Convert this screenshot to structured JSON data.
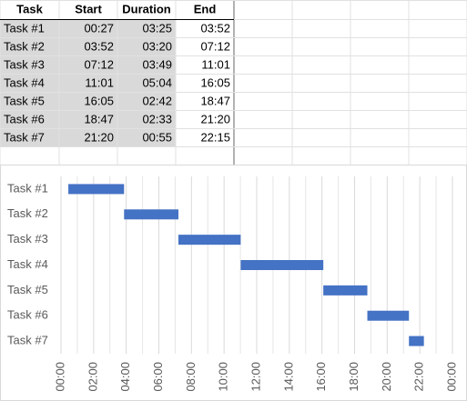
{
  "table": {
    "header": [
      "Task",
      "Start",
      "Duration",
      "End"
    ],
    "rows": [
      [
        "Task #1",
        "00:27",
        "03:25",
        "03:52"
      ],
      [
        "Task #2",
        "03:52",
        "03:20",
        "07:12"
      ],
      [
        "Task #3",
        "07:12",
        "03:49",
        "11:01"
      ],
      [
        "Task #4",
        "11:01",
        "05:04",
        "16:05"
      ],
      [
        "Task #5",
        "16:05",
        "02:42",
        "18:47"
      ],
      [
        "Task #6",
        "18:47",
        "02:33",
        "21:20"
      ],
      [
        "Task #7",
        "21:20",
        "00:55",
        "22:15"
      ]
    ]
  },
  "chart_data": {
    "type": "gantt",
    "categories": [
      "Task #1",
      "Task #2",
      "Task #3",
      "Task #4",
      "Task #5",
      "Task #6",
      "Task #7"
    ],
    "starts": [
      0.45,
      3.8667,
      7.2,
      11.0167,
      16.0833,
      18.7833,
      21.3333
    ],
    "durations": [
      3.4167,
      3.3333,
      3.8167,
      5.0667,
      2.7,
      2.55,
      0.9167
    ],
    "color": "#4472c4",
    "xlim": [
      0,
      24
    ],
    "xticks": [
      {
        "value": 0,
        "label": "00:00"
      },
      {
        "value": 2,
        "label": "02:00"
      },
      {
        "value": 4,
        "label": "04:00"
      },
      {
        "value": 6,
        "label": "06:00"
      },
      {
        "value": 8,
        "label": "08:00"
      },
      {
        "value": 10,
        "label": "10:00"
      },
      {
        "value": 12,
        "label": "12:00"
      },
      {
        "value": 14,
        "label": "14:00"
      },
      {
        "value": 16,
        "label": "16:00"
      },
      {
        "value": 18,
        "label": "18:00"
      },
      {
        "value": 20,
        "label": "20:00"
      },
      {
        "value": 22,
        "label": "22:00"
      },
      {
        "value": 24,
        "label": "00:00"
      }
    ],
    "minor_xticks": [
      1,
      3,
      5,
      7,
      9,
      11,
      13,
      15,
      17,
      19,
      21,
      23
    ],
    "grid": true
  }
}
